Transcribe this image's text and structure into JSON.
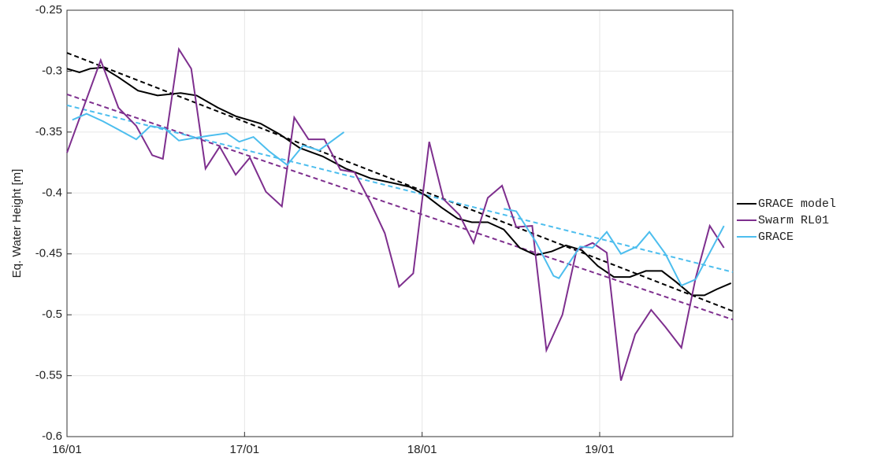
{
  "chart_data": {
    "type": "line",
    "ylabel": "Eq. Water Height [m]",
    "xlim": [
      16,
      19.75
    ],
    "ylim": [
      -0.6,
      -0.25
    ],
    "xticks": [
      {
        "value": 16,
        "label": "16/01"
      },
      {
        "value": 17,
        "label": "17/01"
      },
      {
        "value": 18,
        "label": "18/01"
      },
      {
        "value": 19,
        "label": "19/01"
      }
    ],
    "yticks": [
      -0.6,
      -0.55,
      -0.5,
      -0.45,
      -0.4,
      -0.35,
      -0.3,
      -0.25
    ],
    "grid": true,
    "legend": "outside right",
    "series": [
      {
        "name": "GRACE model",
        "color": "#000000",
        "x": [
          16.0,
          16.07,
          16.13,
          16.2,
          16.29,
          16.4,
          16.51,
          16.64,
          16.73,
          16.85,
          16.95,
          17.09,
          17.2,
          17.31,
          17.44,
          17.57,
          17.71,
          17.84,
          17.93,
          18.02,
          18.11,
          18.2,
          18.28,
          18.37,
          18.46,
          18.55,
          18.64,
          18.73,
          18.81,
          18.9,
          18.99,
          19.08,
          19.17,
          19.26,
          19.35,
          19.43,
          19.52,
          19.59,
          19.66,
          19.74
        ],
        "values": [
          -0.298,
          -0.301,
          -0.298,
          -0.297,
          -0.305,
          -0.316,
          -0.32,
          -0.318,
          -0.32,
          -0.33,
          -0.337,
          -0.343,
          -0.352,
          -0.363,
          -0.37,
          -0.38,
          -0.388,
          -0.392,
          -0.395,
          -0.402,
          -0.412,
          -0.421,
          -0.424,
          -0.424,
          -0.43,
          -0.445,
          -0.451,
          -0.448,
          -0.443,
          -0.447,
          -0.46,
          -0.469,
          -0.469,
          -0.464,
          -0.464,
          -0.473,
          -0.484,
          -0.484,
          -0.479,
          -0.474
        ],
        "trend": {
          "x": [
            16,
            19.75
          ],
          "values": [
            -0.285,
            -0.497
          ]
        }
      },
      {
        "name": "Swarm RL01",
        "color": "#7e2f8e",
        "x": [
          16.0,
          16.19,
          16.29,
          16.39,
          16.48,
          16.54,
          16.63,
          16.7,
          16.78,
          16.86,
          16.95,
          17.03,
          17.12,
          17.21,
          17.28,
          17.36,
          17.45,
          17.54,
          17.62,
          17.71,
          17.79,
          17.87,
          17.95,
          18.04,
          18.12,
          18.21,
          18.29,
          18.37,
          18.45,
          18.53,
          18.62,
          18.7,
          18.79,
          18.87,
          18.96,
          19.04,
          19.12,
          19.2,
          19.29,
          19.37,
          19.46,
          19.54,
          19.62,
          19.7
        ],
        "values": [
          -0.367,
          -0.291,
          -0.33,
          -0.345,
          -0.369,
          -0.372,
          -0.282,
          -0.298,
          -0.38,
          -0.362,
          -0.385,
          -0.371,
          -0.399,
          -0.411,
          -0.338,
          -0.356,
          -0.356,
          -0.381,
          -0.383,
          -0.408,
          -0.433,
          -0.477,
          -0.466,
          -0.358,
          -0.405,
          -0.418,
          -0.441,
          -0.404,
          -0.394,
          -0.428,
          -0.427,
          -0.529,
          -0.5,
          -0.447,
          -0.441,
          -0.449,
          -0.554,
          -0.516,
          -0.496,
          -0.51,
          -0.527,
          -0.47,
          -0.427,
          -0.445
        ],
        "trend": {
          "x": [
            16,
            19.75
          ],
          "values": [
            -0.319,
            -0.504
          ]
        }
      },
      {
        "name": "GRACE",
        "color": "#4dbeee",
        "x": [
          16.03,
          16.11,
          16.2,
          16.29,
          16.39,
          16.47,
          16.55,
          16.63,
          16.71,
          16.8,
          16.9,
          16.97,
          17.05,
          17.14,
          17.24,
          17.33,
          17.42,
          17.56,
          17.9,
          18.46,
          18.53,
          18.64,
          18.74,
          18.77,
          18.89,
          18.96,
          19.04,
          19.12,
          19.21,
          19.28,
          19.37,
          19.46,
          19.54,
          19.7
        ],
        "values": [
          -0.34,
          -0.335,
          -0.341,
          -0.348,
          -0.356,
          -0.345,
          -0.347,
          -0.357,
          -0.355,
          -0.353,
          -0.351,
          -0.358,
          -0.354,
          -0.366,
          -0.377,
          -0.361,
          -0.365,
          -0.35,
          null,
          -0.413,
          -0.415,
          -0.44,
          -0.468,
          -0.47,
          -0.444,
          -0.445,
          -0.432,
          -0.45,
          -0.444,
          -0.432,
          -0.45,
          -0.476,
          -0.471,
          -0.427
        ],
        "trend": {
          "x": [
            16,
            19.75
          ],
          "values": [
            -0.328,
            -0.465
          ]
        }
      }
    ]
  }
}
